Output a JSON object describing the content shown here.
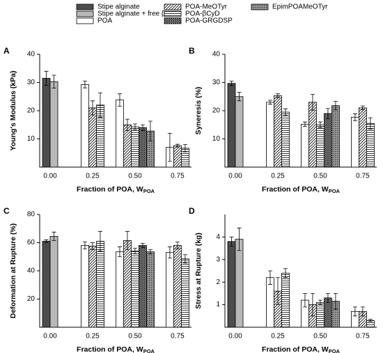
{
  "series": [
    {
      "name": "Stipe alginate",
      "color": "#4d4d4d",
      "pattern": "solid"
    },
    {
      "name": "Stipe alginate + free βCyD",
      "color": "#b8b8b8",
      "pattern": "solid"
    },
    {
      "name": "POA",
      "color": "#ffffff",
      "pattern": "solid"
    },
    {
      "name": "POA-MeOTyr",
      "color": "#ffffff",
      "pattern": "diagonal"
    },
    {
      "name": "POA-βCyD",
      "color": "#ffffff",
      "pattern": "horizontal"
    },
    {
      "name": "POA-GRGDSP",
      "color": "#ffffff",
      "pattern": "crosshatch"
    },
    {
      "name": "EpimPOAMeOTyr",
      "color": "#ffffff",
      "pattern": "dots"
    }
  ],
  "chart_data": [
    {
      "type": "bar",
      "panel": "A",
      "y_label": "Young's Modulus (kPa)",
      "x_label": "Fraction of POA, W",
      "x_label_sub": "POA",
      "categories": [
        "0.00",
        "0.25",
        "0.50",
        "0.75"
      ],
      "ylim": [
        0,
        40
      ],
      "yticks": [
        10,
        20,
        30,
        40
      ],
      "series": [
        {
          "values": [
            31.5,
            null,
            null,
            null
          ],
          "errors": [
            2.5,
            null,
            null,
            null
          ]
        },
        {
          "values": [
            30.3,
            null,
            null,
            null
          ],
          "errors": [
            2.3,
            null,
            null,
            null
          ]
        },
        {
          "values": [
            null,
            29.3,
            23.8,
            7
          ],
          "errors": [
            null,
            1.2,
            2.2,
            5
          ]
        },
        {
          "values": [
            null,
            21,
            15,
            7.6
          ],
          "errors": [
            null,
            2.5,
            2,
            0.5
          ]
        },
        {
          "values": [
            null,
            22,
            14.3,
            6.7
          ],
          "errors": [
            null,
            4.3,
            1,
            1.3
          ]
        },
        {
          "values": [
            null,
            null,
            14,
            null
          ],
          "errors": [
            null,
            null,
            1,
            null
          ]
        },
        {
          "values": [
            null,
            null,
            12.8,
            null
          ],
          "errors": [
            null,
            null,
            3.5,
            null
          ]
        }
      ]
    },
    {
      "type": "bar",
      "panel": "B",
      "y_label": "Syneresis (%)",
      "x_label": "Fraction of POA, W",
      "x_label_sub": "POA",
      "categories": [
        "0.00",
        "0.25",
        "0.50",
        "0.75"
      ],
      "ylim": [
        0,
        40
      ],
      "yticks": [
        10,
        20,
        30,
        40
      ],
      "series": [
        {
          "values": [
            29.7,
            null,
            null,
            null
          ],
          "errors": [
            0.8,
            null,
            null,
            null
          ]
        },
        {
          "values": [
            25,
            null,
            null,
            null
          ],
          "errors": [
            1.5,
            null,
            null,
            null
          ]
        },
        {
          "values": [
            null,
            23,
            15.2,
            17.7
          ],
          "errors": [
            null,
            0.7,
            0.8,
            1.2
          ]
        },
        {
          "values": [
            null,
            25.3,
            23,
            21
          ],
          "errors": [
            null,
            0.7,
            2.8,
            0.7
          ]
        },
        {
          "values": [
            null,
            19.5,
            15,
            15.5
          ],
          "errors": [
            null,
            1.2,
            1,
            2
          ]
        },
        {
          "values": [
            null,
            null,
            19,
            null
          ],
          "errors": [
            null,
            null,
            1.8,
            null
          ]
        },
        {
          "values": [
            null,
            null,
            21.8,
            null
          ],
          "errors": [
            null,
            null,
            1.5,
            null
          ]
        }
      ]
    },
    {
      "type": "bar",
      "panel": "C",
      "y_label": "Deformation at Rupture (%)",
      "x_label": "Fraction of POA, W",
      "x_label_sub": "POA",
      "categories": [
        "0.00",
        "0.25",
        "0.50",
        "0.75"
      ],
      "ylim": [
        0,
        80
      ],
      "yticks": [
        20,
        40,
        60,
        80
      ],
      "series": [
        {
          "values": [
            61,
            null,
            null,
            null
          ],
          "errors": [
            1,
            null,
            null,
            null
          ]
        },
        {
          "values": [
            64.5,
            null,
            null,
            null
          ],
          "errors": [
            3,
            null,
            null,
            null
          ]
        },
        {
          "values": [
            null,
            58,
            53.5,
            53
          ],
          "errors": [
            null,
            2.5,
            3.5,
            4
          ]
        },
        {
          "values": [
            null,
            57.5,
            61.5,
            58
          ],
          "errors": [
            null,
            2.5,
            6.5,
            2.5
          ]
        },
        {
          "values": [
            null,
            61,
            54,
            48.5
          ],
          "errors": [
            null,
            7,
            2,
            3
          ]
        },
        {
          "values": [
            null,
            null,
            58,
            null
          ],
          "errors": [
            null,
            null,
            1.5,
            null
          ]
        },
        {
          "values": [
            null,
            null,
            53.5,
            null
          ],
          "errors": [
            null,
            null,
            1.5,
            null
          ]
        }
      ]
    },
    {
      "type": "bar",
      "panel": "D",
      "y_label": "Stress at Rupture (kg)",
      "x_label": "Fraction of POA, W",
      "x_label_sub": "POA",
      "categories": [
        "0.00",
        "0.25",
        "0.50",
        "0.75"
      ],
      "ylim": [
        0,
        5
      ],
      "yticks": [
        1,
        2,
        3,
        4
      ],
      "series": [
        {
          "values": [
            3.8,
            null,
            null,
            null
          ],
          "errors": [
            0.2,
            null,
            null,
            null
          ]
        },
        {
          "values": [
            3.9,
            null,
            null,
            null
          ],
          "errors": [
            0.5,
            null,
            null,
            null
          ]
        },
        {
          "values": [
            null,
            2.2,
            1.2,
            0.7
          ],
          "errors": [
            null,
            0.3,
            0.3,
            0.2
          ]
        },
        {
          "values": [
            null,
            1.6,
            1,
            0.7
          ],
          "errors": [
            null,
            0.6,
            0.5,
            0.2
          ]
        },
        {
          "values": [
            null,
            2.4,
            1.1,
            0.3
          ],
          "errors": [
            null,
            0.2,
            0.1,
            0.05
          ]
        },
        {
          "values": [
            null,
            null,
            1.3,
            null
          ],
          "errors": [
            null,
            null,
            0.2,
            null
          ]
        },
        {
          "values": [
            null,
            null,
            1.15,
            null
          ],
          "errors": [
            null,
            null,
            0.35,
            null
          ]
        }
      ]
    }
  ]
}
